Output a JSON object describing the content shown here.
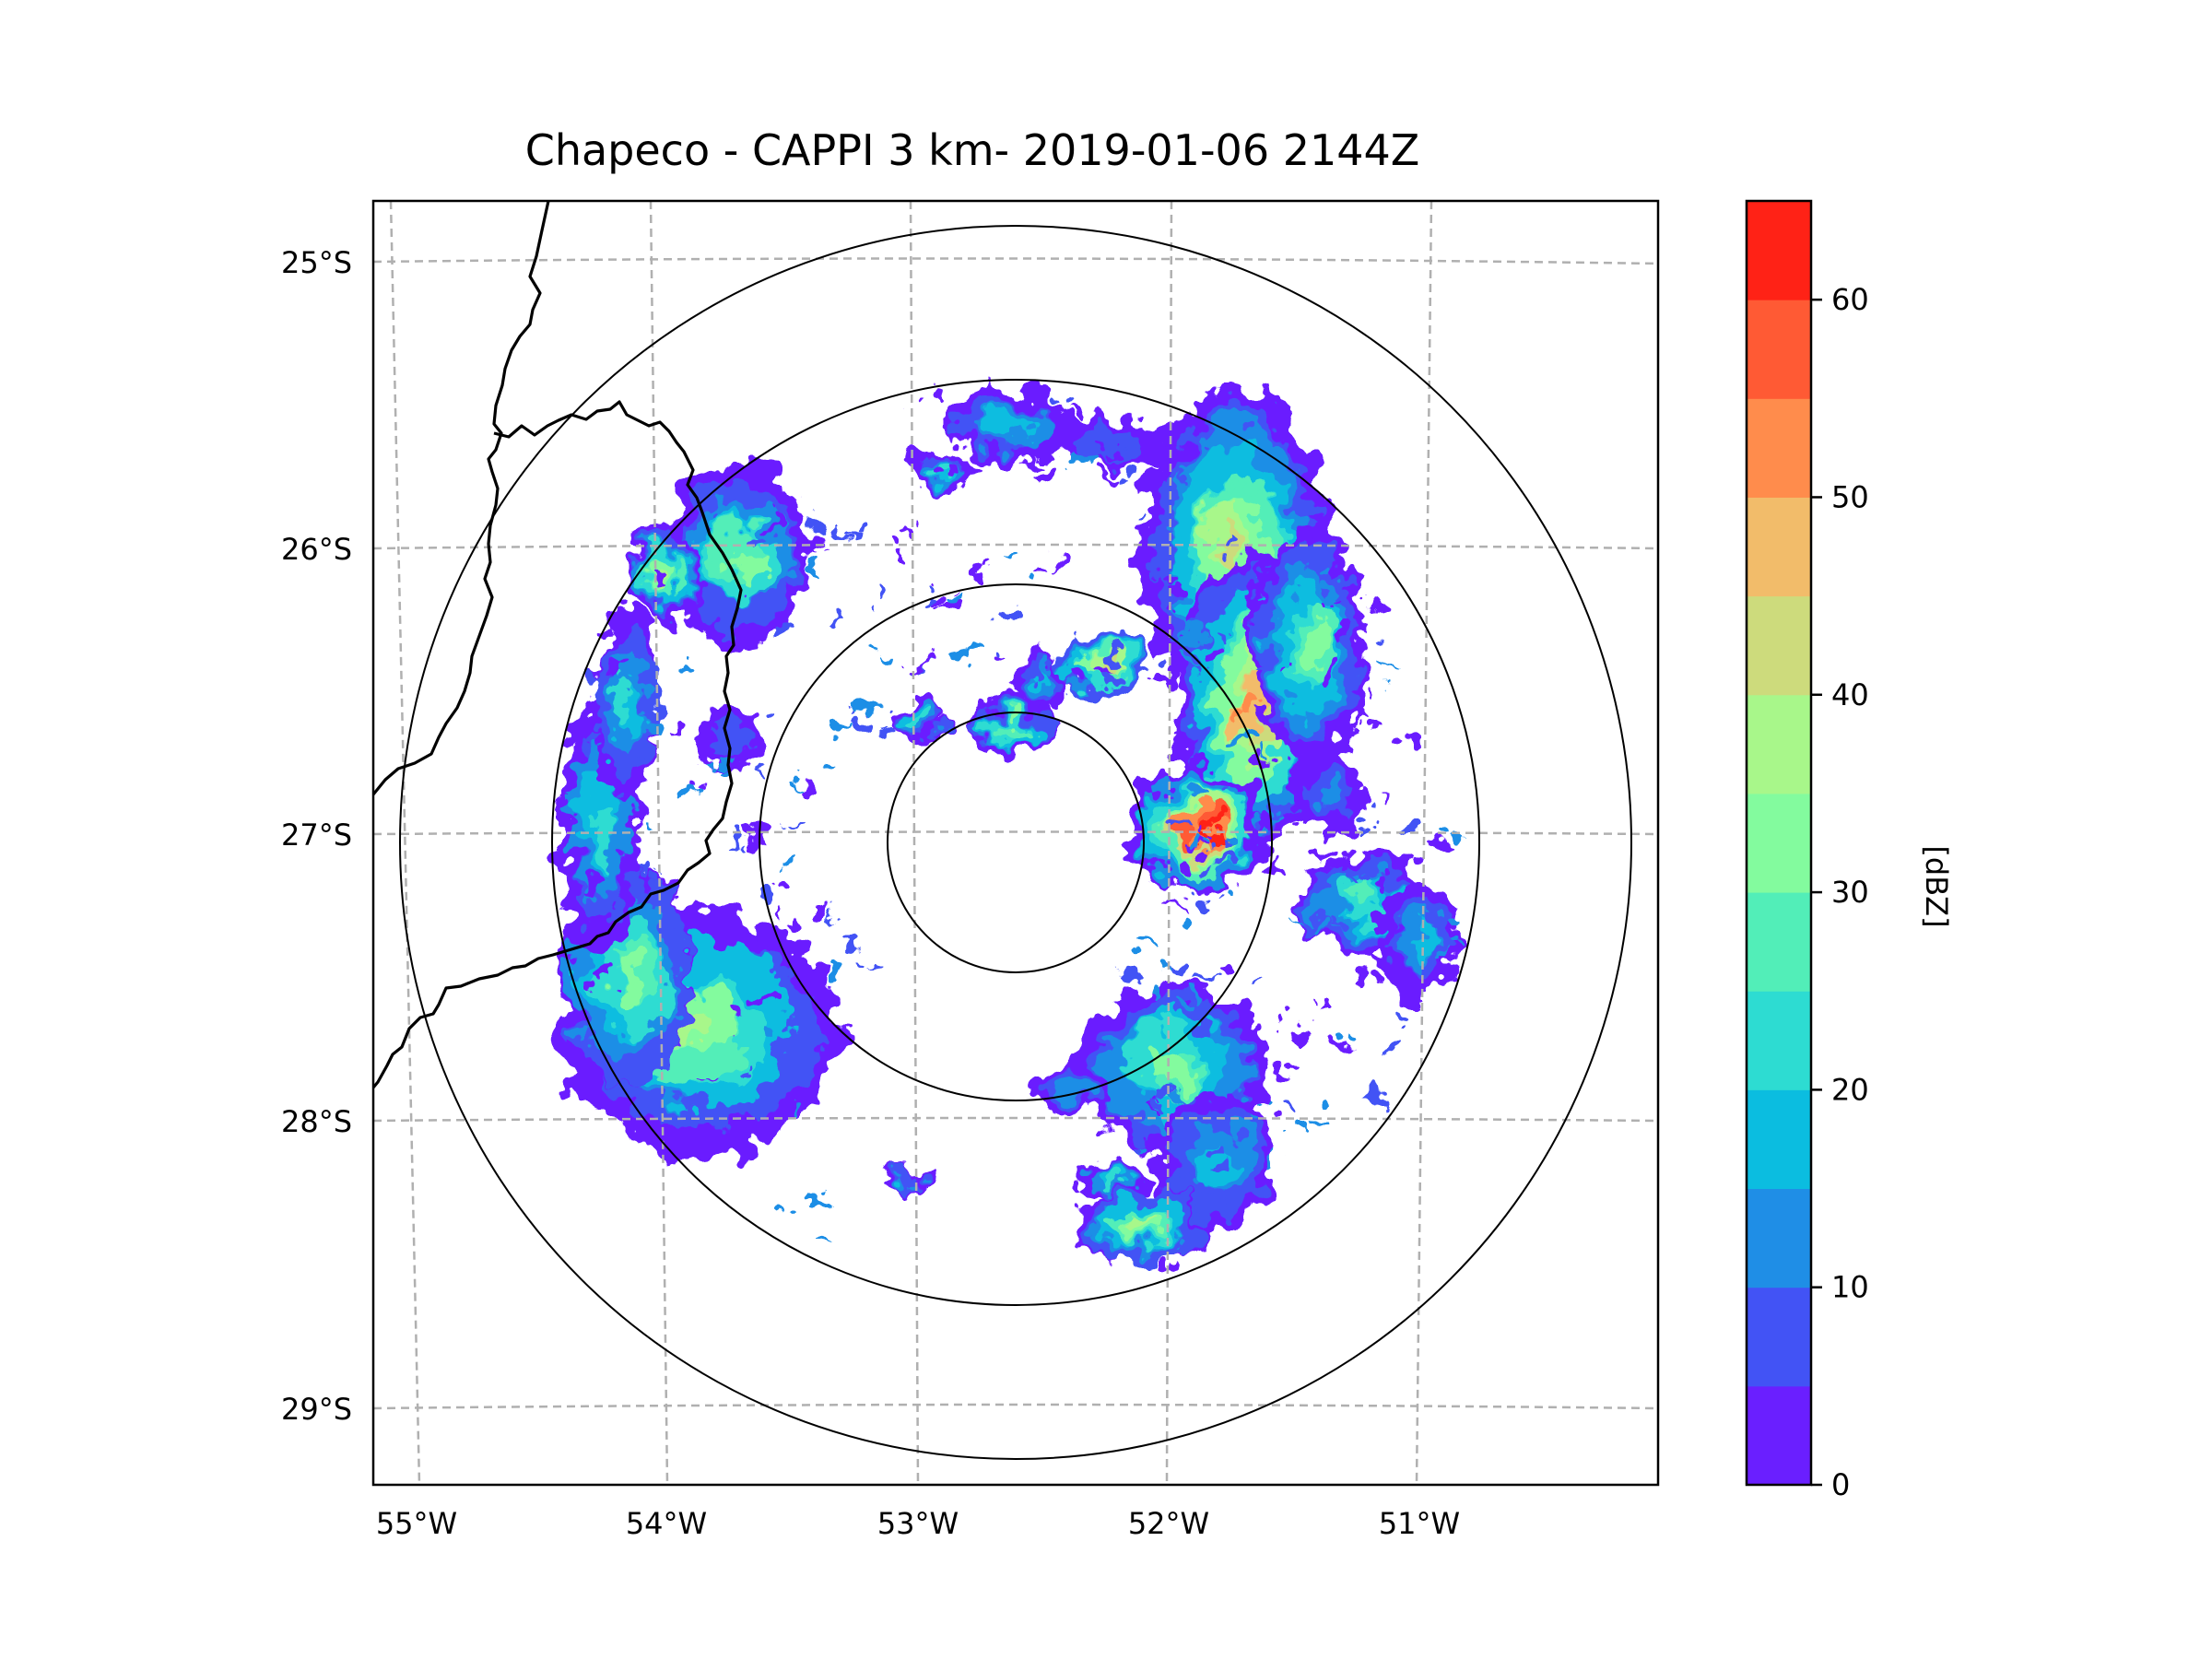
{
  "title": "Chapeco - CAPPI 3 km- 2019-01-06 2144Z",
  "map": {
    "lat_labels": [
      "25°S",
      "26°S",
      "27°S",
      "28°S",
      "29°S"
    ],
    "lon_labels": [
      "55°W",
      "54°W",
      "53°W",
      "52°W",
      "51°W"
    ],
    "grid_color": "#b0b0b0",
    "border_color": "#000000",
    "range_ring_color": "#000000"
  },
  "colorbar": {
    "label": "[dBZ]",
    "tick_labels": [
      "0",
      "10",
      "20",
      "30",
      "40",
      "50",
      "60"
    ],
    "levels": [
      0,
      5,
      10,
      15,
      20,
      25,
      30,
      35,
      40,
      45,
      50,
      55,
      60,
      65
    ],
    "colors": [
      "#6a1fff",
      "#4253f5",
      "#1f8ee6",
      "#0bbde0",
      "#2ddcd2",
      "#52eeb8",
      "#83fb9e",
      "#a8f78a",
      "#cddb7c",
      "#f2bc6a",
      "#ff8c4c",
      "#ff5a34",
      "#ff2216"
    ]
  },
  "chart_data": {
    "type": "heatmap",
    "title": "Chapeco - CAPPI 3 km- 2019-01-06 2144Z",
    "xlabel": "",
    "ylabel": "",
    "lon_range": [
      -55.2,
      -50.0
    ],
    "lat_range": [
      -29.3,
      -24.8
    ],
    "radar_center": {
      "lon": -52.6,
      "lat": -27.03
    },
    "units": "dBZ",
    "value_range": [
      0,
      65
    ]
  }
}
